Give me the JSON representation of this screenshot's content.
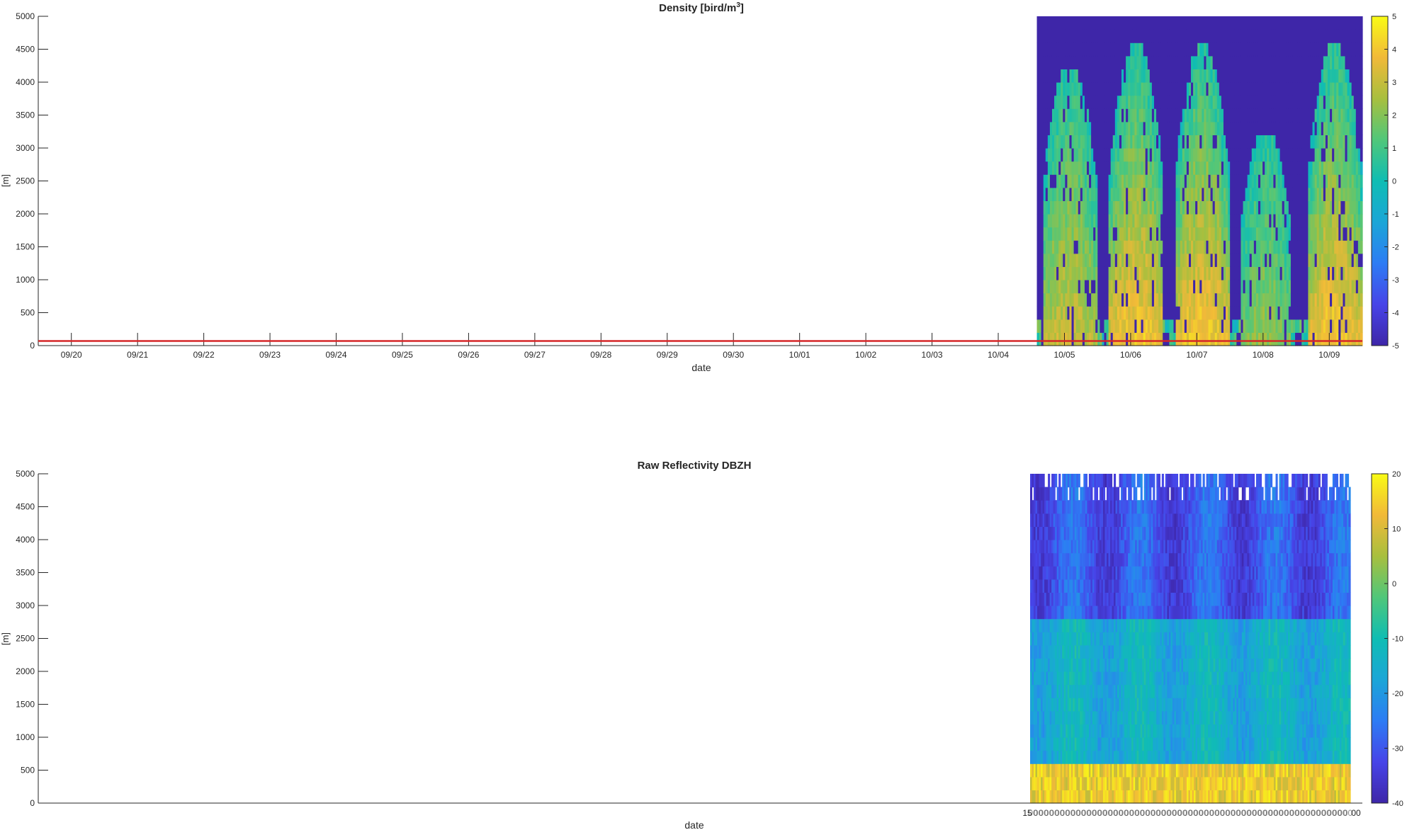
{
  "chart_data": [
    {
      "type": "heatmap",
      "title_main": "Density [bird/m",
      "title_sup": "3",
      "title_end": "]",
      "xlabel": "date",
      "ylabel": "[m]",
      "ylim": [
        0,
        5000
      ],
      "yticks": [
        0,
        500,
        1000,
        1500,
        2000,
        2500,
        3000,
        3500,
        4000,
        4500,
        5000
      ],
      "xlim": [
        "09/19 12:00",
        "10/09 12:00"
      ],
      "xticks": [
        "09/20",
        "09/21",
        "09/22",
        "09/23",
        "09/24",
        "09/25",
        "09/26",
        "09/27",
        "09/28",
        "09/29",
        "09/30",
        "10/01",
        "10/02",
        "10/03",
        "10/04",
        "10/05",
        "10/06",
        "10/07",
        "10/08",
        "10/09"
      ],
      "data_start": "10/04 14:00",
      "data_end": "10/09 12:00",
      "layer_heights_m": [
        0,
        200,
        400,
        600,
        800,
        1000,
        1200,
        1400,
        1600,
        1800,
        2000,
        2200,
        2400,
        2600,
        2800,
        3000,
        3200,
        3400,
        3600,
        3800,
        4000,
        4200,
        4400,
        4600,
        4800
      ],
      "night_bands": [
        {
          "start": "10/04 16:00",
          "end": "10/05 12:00",
          "peak_height_m": 4200,
          "peak_value": 3
        },
        {
          "start": "10/05 16:00",
          "end": "10/06 12:00",
          "peak_height_m": 4500,
          "peak_value": 4
        },
        {
          "start": "10/06 16:00",
          "end": "10/07 12:00",
          "peak_height_m": 4500,
          "peak_value": 4
        },
        {
          "start": "10/07 16:00",
          "end": "10/08 10:00",
          "peak_height_m": 3200,
          "peak_value": 2
        },
        {
          "start": "10/08 16:00",
          "end": "10/09 12:00",
          "peak_height_m": 4500,
          "peak_value": 4
        }
      ],
      "background_value": -5,
      "threshold_line": {
        "y": 70,
        "color": "#d62728"
      },
      "colorbar": {
        "min": -5,
        "max": 5,
        "ticks": [
          5,
          4,
          3,
          2,
          1,
          0,
          -1,
          -2,
          -3,
          -4,
          -5
        ],
        "colormap": "parula"
      },
      "grid": false
    },
    {
      "type": "heatmap",
      "title": "Raw Reflectivity DBZH",
      "xlabel": "date",
      "ylabel": "[m]",
      "ylim": [
        0,
        5000
      ],
      "yticks": [
        0,
        500,
        1000,
        1500,
        2000,
        2500,
        3000,
        3500,
        4000,
        4500,
        5000
      ],
      "x_tick_labels_overlapping": "15:00 ... 00:00 (dense labels, illegible)",
      "x_tick_label_first": "15",
      "x_tick_label_last": "00",
      "data_start": "10/04 15:00",
      "data_end": "10/09 09:00",
      "layer_heights_m": [
        0,
        200,
        400,
        600,
        800,
        1000,
        1200,
        1400,
        1600,
        1800,
        2000,
        2200,
        2400,
        2600,
        2800,
        3000,
        3200,
        3400,
        3600,
        3800,
        4000,
        4200,
        4400,
        4600,
        4800
      ],
      "near_ground_value": 15,
      "mid_value": -15,
      "upper_value": -30,
      "colorbar": {
        "min": -40,
        "max": 20,
        "ticks": [
          20,
          10,
          0,
          -10,
          -20,
          -30,
          -40
        ],
        "colormap": "parula"
      },
      "grid": false
    }
  ]
}
